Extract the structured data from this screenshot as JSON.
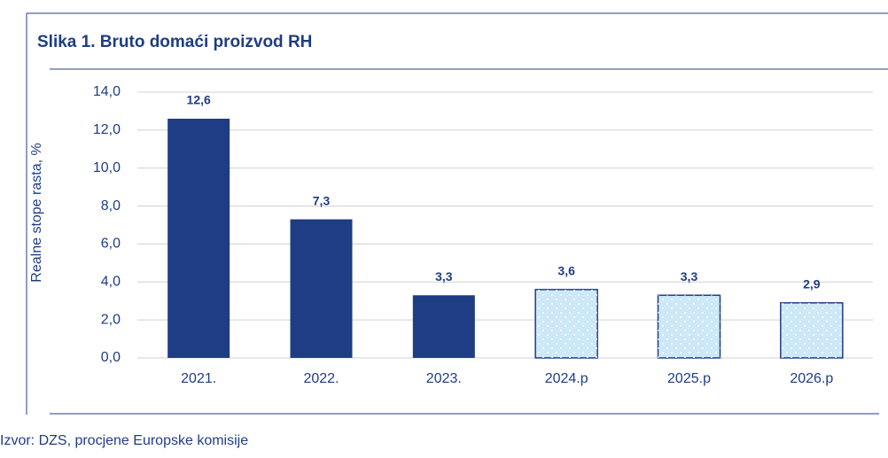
{
  "chart_data": {
    "type": "bar",
    "title": "Slika 1. Bruto domaći proizvod RH",
    "ylabel": "Realne stope rasta, %",
    "source": "Izvor: DZS, procjene Europske komisije",
    "categories": [
      "2021.",
      "2022.",
      "2023.",
      "2024.p",
      "2025.p",
      "2026.p"
    ],
    "values": [
      12.6,
      7.3,
      3.3,
      3.6,
      3.3,
      2.9
    ],
    "value_labels": [
      "12,6",
      "7,3",
      "3,3",
      "3,6",
      "3,3",
      "2,9"
    ],
    "colors": [
      "#1f3d84",
      "#1f3d84",
      "#1f3d84",
      "#cde8f7",
      "#cde8f7",
      "#cde8f7"
    ],
    "dotted": [
      false,
      false,
      false,
      true,
      true,
      true
    ],
    "ylim": [
      0,
      14
    ],
    "yticks": [
      {
        "value": 0,
        "label": "0,0"
      },
      {
        "value": 2,
        "label": "2,0"
      },
      {
        "value": 4,
        "label": "4,0"
      },
      {
        "value": 6,
        "label": "6,0"
      },
      {
        "value": 8,
        "label": "8,0"
      },
      {
        "value": 10,
        "label": "10,0"
      },
      {
        "value": 12,
        "label": "12,0"
      },
      {
        "value": 14,
        "label": "14,0"
      }
    ],
    "grid": true
  }
}
